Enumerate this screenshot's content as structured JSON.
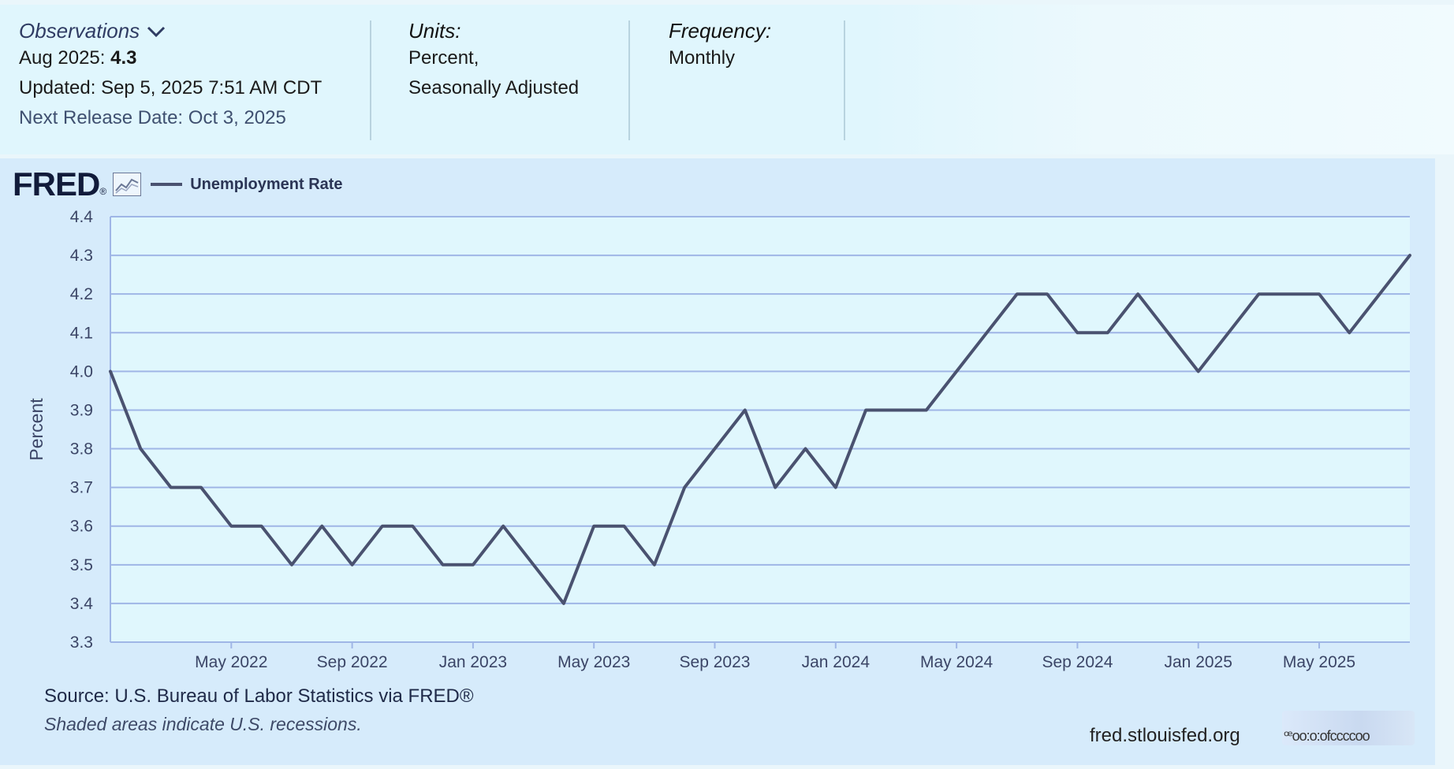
{
  "header": {
    "observations_label": "Observations",
    "obs_date": "Aug 2025:",
    "obs_value": "4.3",
    "updated": "Updated: Sep 5, 2025 7:51 AM CDT",
    "next_release": "Next Release Date: Oct 3, 2025",
    "units_label": "Units:",
    "units_line1": "Percent,",
    "units_line2": "Seasonally Adjusted",
    "frequency_label": "Frequency:",
    "frequency_value": "Monthly"
  },
  "brand": {
    "logo": "FRED",
    "reg": "®",
    "legend_series": "Unemployment Rate"
  },
  "footer": {
    "source": "Source: U.S. Bureau of Labor Statistics via FRED®",
    "note": "Shaded areas indicate U.S. recessions.",
    "site": "fred.stlouisfed.org",
    "code": "ꟹoo:o:ofccccoo"
  },
  "colors": {
    "line": "#4a5270",
    "grid": "#9fb6e6",
    "plot_bg": "#e0f7fd",
    "panel_bg": "#d6ebfb"
  },
  "chart_data": {
    "type": "line",
    "title": "",
    "xlabel": "",
    "ylabel": "Percent",
    "ylim": [
      3.3,
      4.4
    ],
    "yticks": [
      "3.3",
      "3.4",
      "3.5",
      "3.6",
      "3.7",
      "3.8",
      "3.9",
      "4.0",
      "4.1",
      "4.2",
      "4.3",
      "4.4"
    ],
    "xticks": [
      "May 2022",
      "Sep 2022",
      "Jan 2023",
      "May 2023",
      "Sep 2023",
      "Jan 2024",
      "May 2024",
      "Sep 2024",
      "Jan 2025",
      "May 2025"
    ],
    "x": [
      "Jan 2022",
      "Feb 2022",
      "Mar 2022",
      "Apr 2022",
      "May 2022",
      "Jun 2022",
      "Jul 2022",
      "Aug 2022",
      "Sep 2022",
      "Oct 2022",
      "Nov 2022",
      "Dec 2022",
      "Jan 2023",
      "Feb 2023",
      "Mar 2023",
      "Apr 2023",
      "May 2023",
      "Jun 2023",
      "Jul 2023",
      "Aug 2023",
      "Sep 2023",
      "Oct 2023",
      "Nov 2023",
      "Dec 2023",
      "Jan 2024",
      "Feb 2024",
      "Mar 2024",
      "Apr 2024",
      "May 2024",
      "Jun 2024",
      "Jul 2024",
      "Aug 2024",
      "Sep 2024",
      "Oct 2024",
      "Nov 2024",
      "Dec 2024",
      "Jan 2025",
      "Feb 2025",
      "Mar 2025",
      "Apr 2025",
      "May 2025",
      "Jun 2025",
      "Jul 2025",
      "Aug 2025"
    ],
    "series": [
      {
        "name": "Unemployment Rate",
        "values": [
          4.0,
          3.8,
          3.7,
          3.7,
          3.6,
          3.6,
          3.5,
          3.6,
          3.5,
          3.6,
          3.6,
          3.5,
          3.5,
          3.6,
          3.5,
          3.4,
          3.6,
          3.6,
          3.5,
          3.7,
          3.8,
          3.9,
          3.7,
          3.8,
          3.7,
          3.9,
          3.9,
          3.9,
          4.0,
          4.1,
          4.2,
          4.2,
          4.1,
          4.1,
          4.2,
          4.1,
          4.0,
          4.1,
          4.2,
          4.2,
          4.2,
          4.1,
          4.2,
          4.3
        ]
      }
    ],
    "grid": true,
    "legend": "top-left"
  }
}
